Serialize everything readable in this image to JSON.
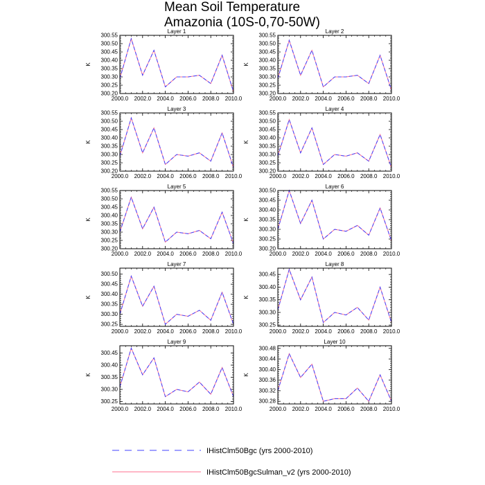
{
  "title_line1": "Mean Soil Temperature",
  "title_line2": "Amazonia (10S-0,70-50W)",
  "colors": {
    "series_1": "#4040ff",
    "series_2": "#ff6f8f"
  },
  "legend": [
    {
      "label": "IHistClm50Bgc (yrs 2000-2010)",
      "style": "dashed"
    },
    {
      "label": "IHistClm50BgcSulman_v2 (yrs 2000-2010)",
      "style": "solid"
    }
  ],
  "chart_data": [
    {
      "type": "line",
      "title": "Layer 1",
      "ylabel": "K",
      "xlim": [
        2000,
        2010
      ],
      "ylim": [
        300.2,
        300.55
      ],
      "yticks": [
        "300.20",
        "300.25",
        "300.30",
        "300.35",
        "300.40",
        "300.45",
        "300.50",
        "300.55"
      ],
      "xticks": [
        "2000.0",
        "2002.0",
        "2004.0",
        "2006.0",
        "2008.0",
        "2010.0"
      ],
      "x": [
        2000,
        2001,
        2002,
        2003,
        2004,
        2005,
        2006,
        2007,
        2008,
        2009,
        2010
      ],
      "series": [
        {
          "values": [
            300.29,
            300.53,
            300.31,
            300.46,
            300.24,
            300.3,
            300.3,
            300.31,
            300.26,
            300.43,
            300.21
          ]
        },
        {
          "values": [
            300.29,
            300.53,
            300.31,
            300.46,
            300.24,
            300.3,
            300.3,
            300.31,
            300.26,
            300.43,
            300.21
          ]
        }
      ]
    },
    {
      "type": "line",
      "title": "Layer 2",
      "ylabel": "K",
      "xlim": [
        2000,
        2010
      ],
      "ylim": [
        300.2,
        300.55
      ],
      "yticks": [
        "300.20",
        "300.25",
        "300.30",
        "300.35",
        "300.40",
        "300.45",
        "300.50",
        "300.55"
      ],
      "xticks": [
        "2000.0",
        "2002.0",
        "2004.0",
        "2006.0",
        "2008.0",
        "2010.0"
      ],
      "x": [
        2000,
        2001,
        2002,
        2003,
        2004,
        2005,
        2006,
        2007,
        2008,
        2009,
        2010
      ],
      "series": [
        {
          "values": [
            300.29,
            300.52,
            300.31,
            300.46,
            300.24,
            300.3,
            300.3,
            300.31,
            300.26,
            300.43,
            300.22
          ]
        },
        {
          "values": [
            300.29,
            300.52,
            300.31,
            300.46,
            300.24,
            300.3,
            300.3,
            300.31,
            300.26,
            300.43,
            300.22
          ]
        }
      ]
    },
    {
      "type": "line",
      "title": "Layer 3",
      "ylabel": "K",
      "xlim": [
        2000,
        2010
      ],
      "ylim": [
        300.2,
        300.55
      ],
      "yticks": [
        "300.20",
        "300.25",
        "300.30",
        "300.35",
        "300.40",
        "300.45",
        "300.50",
        "300.55"
      ],
      "xticks": [
        "2000.0",
        "2002.0",
        "2004.0",
        "2006.0",
        "2008.0",
        "2010.0"
      ],
      "x": [
        2000,
        2001,
        2002,
        2003,
        2004,
        2005,
        2006,
        2007,
        2008,
        2009,
        2010
      ],
      "series": [
        {
          "values": [
            300.29,
            300.52,
            300.31,
            300.46,
            300.24,
            300.3,
            300.29,
            300.31,
            300.26,
            300.43,
            300.22
          ]
        },
        {
          "values": [
            300.29,
            300.52,
            300.31,
            300.46,
            300.24,
            300.3,
            300.29,
            300.31,
            300.26,
            300.43,
            300.22
          ]
        }
      ]
    },
    {
      "type": "line",
      "title": "Layer 4",
      "ylabel": "K",
      "xlim": [
        2000,
        2010
      ],
      "ylim": [
        300.2,
        300.55
      ],
      "yticks": [
        "300.20",
        "300.25",
        "300.30",
        "300.35",
        "300.40",
        "300.45",
        "300.50",
        "300.55"
      ],
      "xticks": [
        "2000.0",
        "2002.0",
        "2004.0",
        "2006.0",
        "2008.0",
        "2010.0"
      ],
      "x": [
        2000,
        2001,
        2002,
        2003,
        2004,
        2005,
        2006,
        2007,
        2008,
        2009,
        2010
      ],
      "series": [
        {
          "values": [
            300.29,
            300.51,
            300.31,
            300.46,
            300.24,
            300.3,
            300.29,
            300.31,
            300.26,
            300.42,
            300.22
          ]
        },
        {
          "values": [
            300.29,
            300.51,
            300.31,
            300.46,
            300.24,
            300.3,
            300.29,
            300.31,
            300.26,
            300.42,
            300.22
          ]
        }
      ]
    },
    {
      "type": "line",
      "title": "Layer 5",
      "ylabel": "K",
      "xlim": [
        2000,
        2010
      ],
      "ylim": [
        300.2,
        300.55
      ],
      "yticks": [
        "300.20",
        "300.25",
        "300.30",
        "300.35",
        "300.40",
        "300.45",
        "300.50",
        "300.55"
      ],
      "xticks": [
        "2000.0",
        "2002.0",
        "2004.0",
        "2006.0",
        "2008.0",
        "2010.0"
      ],
      "x": [
        2000,
        2001,
        2002,
        2003,
        2004,
        2005,
        2006,
        2007,
        2008,
        2009,
        2010
      ],
      "series": [
        {
          "values": [
            300.3,
            300.51,
            300.32,
            300.45,
            300.24,
            300.3,
            300.29,
            300.31,
            300.26,
            300.42,
            300.23
          ]
        },
        {
          "values": [
            300.3,
            300.51,
            300.32,
            300.45,
            300.24,
            300.3,
            300.29,
            300.31,
            300.26,
            300.42,
            300.23
          ]
        }
      ]
    },
    {
      "type": "line",
      "title": "Layer 6",
      "ylabel": "K",
      "xlim": [
        2000,
        2010
      ],
      "ylim": [
        300.2,
        300.5
      ],
      "yticks": [
        "300.20",
        "300.25",
        "300.30",
        "300.35",
        "300.40",
        "300.45",
        "300.50"
      ],
      "xticks": [
        "2000.0",
        "2002.0",
        "2004.0",
        "2006.0",
        "2008.0",
        "2010.0"
      ],
      "x": [
        2000,
        2001,
        2002,
        2003,
        2004,
        2005,
        2006,
        2007,
        2008,
        2009,
        2010
      ],
      "series": [
        {
          "values": [
            300.3,
            300.5,
            300.33,
            300.45,
            300.25,
            300.3,
            300.29,
            300.32,
            300.27,
            300.41,
            300.24
          ]
        },
        {
          "values": [
            300.3,
            300.5,
            300.33,
            300.45,
            300.25,
            300.3,
            300.29,
            300.32,
            300.27,
            300.41,
            300.24
          ]
        }
      ]
    },
    {
      "type": "line",
      "title": "Layer 7",
      "ylabel": "K",
      "xlim": [
        2000,
        2010
      ],
      "ylim": [
        300.24,
        300.53
      ],
      "yticks": [
        "300.25",
        "300.30",
        "300.35",
        "300.40",
        "300.45",
        "300.50"
      ],
      "xticks": [
        "2000.0",
        "2002.0",
        "2004.0",
        "2006.0",
        "2008.0",
        "2010.0"
      ],
      "x": [
        2000,
        2001,
        2002,
        2003,
        2004,
        2005,
        2006,
        2007,
        2008,
        2009,
        2010
      ],
      "series": [
        {
          "values": [
            300.3,
            300.49,
            300.34,
            300.44,
            300.25,
            300.3,
            300.29,
            300.32,
            300.27,
            300.41,
            300.25
          ]
        },
        {
          "values": [
            300.3,
            300.49,
            300.34,
            300.44,
            300.25,
            300.3,
            300.29,
            300.32,
            300.27,
            300.41,
            300.25
          ]
        }
      ]
    },
    {
      "type": "line",
      "title": "Layer 8",
      "ylabel": "K",
      "xlim": [
        2000,
        2010
      ],
      "ylim": [
        300.245,
        300.475
      ],
      "yticks": [
        "300.25",
        "300.30",
        "300.35",
        "300.40",
        "300.45"
      ],
      "xticks": [
        "2000.0",
        "2002.0",
        "2004.0",
        "2006.0",
        "2008.0",
        "2010.0"
      ],
      "x": [
        2000,
        2001,
        2002,
        2003,
        2004,
        2005,
        2006,
        2007,
        2008,
        2009,
        2010
      ],
      "series": [
        {
          "values": [
            300.31,
            300.47,
            300.35,
            300.44,
            300.26,
            300.3,
            300.29,
            300.32,
            300.27,
            300.4,
            300.26
          ]
        },
        {
          "values": [
            300.31,
            300.47,
            300.35,
            300.44,
            300.26,
            300.3,
            300.29,
            300.32,
            300.27,
            300.4,
            300.26
          ]
        }
      ]
    },
    {
      "type": "line",
      "title": "Layer 9",
      "ylabel": "K",
      "xlim": [
        2000,
        2010
      ],
      "ylim": [
        300.24,
        300.48
      ],
      "yticks": [
        "300.25",
        "300.30",
        "300.35",
        "300.40",
        "300.45"
      ],
      "xticks": [
        "2000.0",
        "2002.0",
        "2004.0",
        "2006.0",
        "2008.0",
        "2010.0"
      ],
      "x": [
        2000,
        2001,
        2002,
        2003,
        2004,
        2005,
        2006,
        2007,
        2008,
        2009,
        2010
      ],
      "series": [
        {
          "values": [
            300.31,
            300.47,
            300.36,
            300.43,
            300.27,
            300.3,
            300.29,
            300.33,
            300.28,
            300.39,
            300.27
          ]
        },
        {
          "values": [
            300.31,
            300.47,
            300.36,
            300.43,
            300.27,
            300.3,
            300.29,
            300.33,
            300.28,
            300.39,
            300.27
          ]
        }
      ]
    },
    {
      "type": "line",
      "title": "Layer 10",
      "ylabel": "K",
      "xlim": [
        2000,
        2010
      ],
      "ylim": [
        300.27,
        300.49
      ],
      "yticks": [
        "300.28",
        "300.32",
        "300.36",
        "300.40",
        "300.44",
        "300.48"
      ],
      "xticks": [
        "2000.0",
        "2002.0",
        "2004.0",
        "2006.0",
        "2008.0",
        "2010.0"
      ],
      "x": [
        2000,
        2001,
        2002,
        2003,
        2004,
        2005,
        2006,
        2007,
        2008,
        2009,
        2010
      ],
      "series": [
        {
          "values": [
            300.32,
            300.46,
            300.37,
            300.42,
            300.28,
            300.29,
            300.29,
            300.33,
            300.28,
            300.38,
            300.28
          ]
        },
        {
          "values": [
            300.32,
            300.46,
            300.37,
            300.42,
            300.28,
            300.29,
            300.29,
            300.33,
            300.28,
            300.38,
            300.28
          ]
        }
      ]
    }
  ]
}
